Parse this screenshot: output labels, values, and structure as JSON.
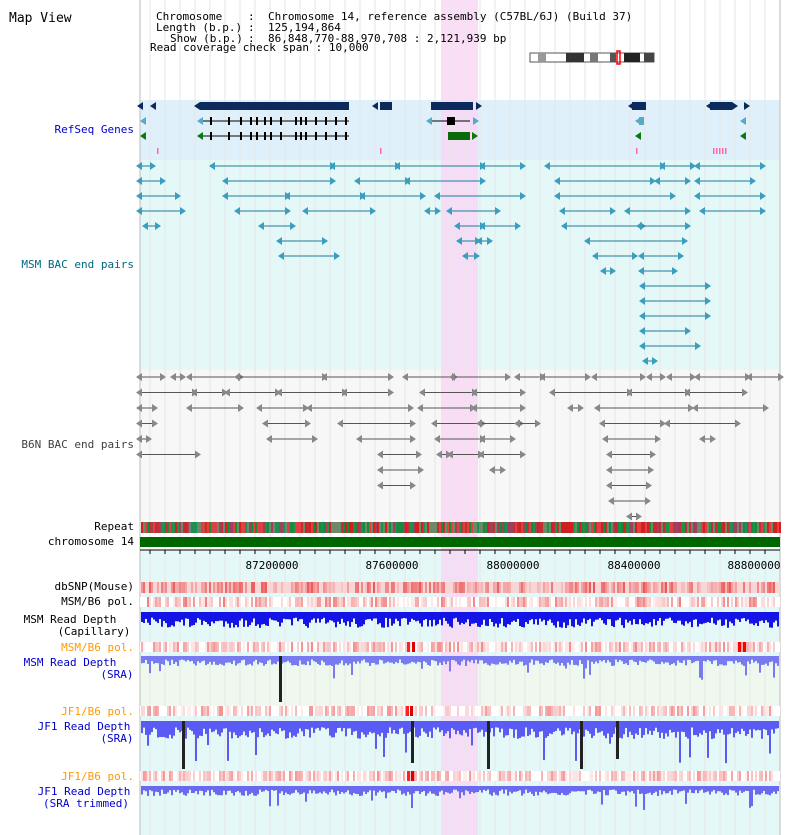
{
  "page": {
    "title": "Map View"
  },
  "header": {
    "chromosome_key": "Chromosome",
    "chromosome_value": "Chromosome 14, reference assembly (C57BL/6J) (Build 37)",
    "length_key": "Length (b.p.)",
    "length_value": "125,194,864",
    "show_key": "Show (b.p.)",
    "show_value": "86,848,770-88,970,708 : 2,121,939 bp",
    "span_key": "Read coverage check span",
    "span_value": "10,000"
  },
  "tracks": {
    "refseq": "RefSeq Genes",
    "msm_bac": "MSM BAC end pairs",
    "b6n_bac": "B6N BAC end pairs",
    "repeat": "Repeat",
    "chromosome": "chromosome 14",
    "dbsnp": "dbSNP(Mouse)",
    "msm_b6_pol": "MSM/B6 pol.",
    "msm_depth_cap_1": "MSM Read Depth",
    "msm_depth_cap_2": "(Capillary)",
    "msm_b6_pol_2": "MSM/B6 pol.",
    "msm_depth_sra_1": "MSM Read Depth",
    "msm_depth_sra_2": "(SRA)",
    "jf1_b6_pol": "JF1/B6 pol.",
    "jf1_depth_sra_1": "JF1 Read Depth",
    "jf1_depth_sra_2": "(SRA)",
    "jf1_b6_pol_2": "JF1/B6 pol.",
    "jf1_depth_trim_1": "JF1 Read Depth",
    "jf1_depth_trim_2": "(SRA trimmed)"
  },
  "axis": {
    "ticks": [
      "87200000",
      "87600000",
      "88000000",
      "88400000",
      "88800000"
    ]
  },
  "colors": {
    "label_blue": "#0000cc",
    "label_teal": "#006680",
    "label_orange": "#ff9900",
    "highlight": "#f8d8f4",
    "chromosome_bar": "#006600"
  }
}
